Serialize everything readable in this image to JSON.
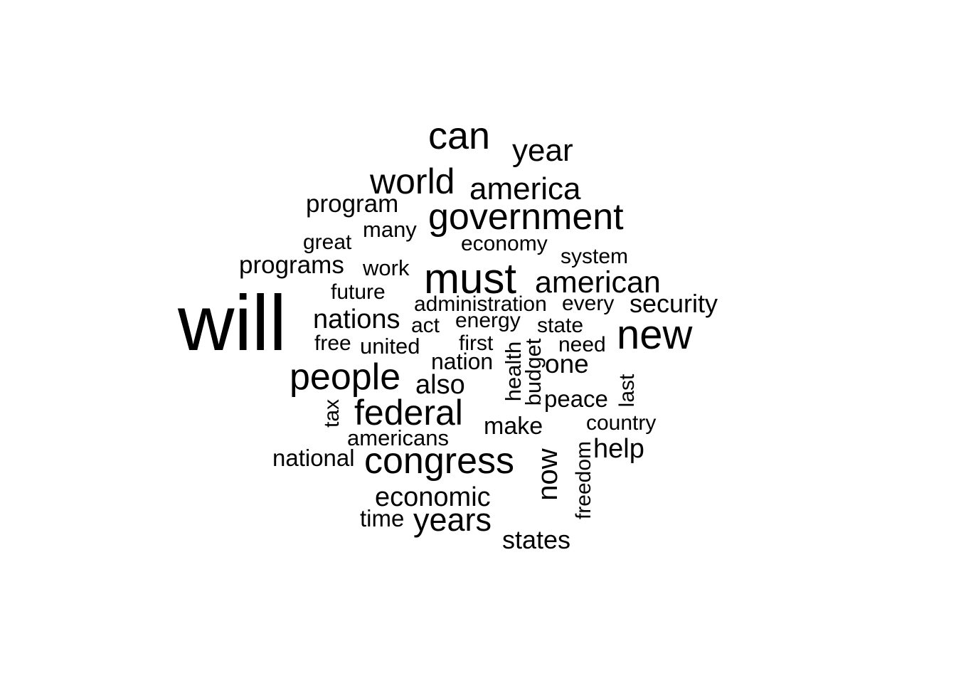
{
  "word_cloud": {
    "text_color": "#000000",
    "background_color": "#ffffff",
    "words": [
      {
        "text": "will",
        "rank": 1
      },
      {
        "text": "must",
        "rank": 2
      },
      {
        "text": "new",
        "rank": 3
      },
      {
        "text": "can",
        "rank": 4
      },
      {
        "text": "congress",
        "rank": 5
      },
      {
        "text": "people",
        "rank": 6
      },
      {
        "text": "government",
        "rank": 7
      },
      {
        "text": "world",
        "rank": 8
      },
      {
        "text": "federal",
        "rank": 9
      },
      {
        "text": "year",
        "rank": 10
      },
      {
        "text": "america",
        "rank": 11
      },
      {
        "text": "american",
        "rank": 12
      },
      {
        "text": "years",
        "rank": 13
      },
      {
        "text": "now",
        "rank": 14
      },
      {
        "text": "nations",
        "rank": 15
      },
      {
        "text": "also",
        "rank": 16
      },
      {
        "text": "economic",
        "rank": 17
      },
      {
        "text": "security",
        "rank": 18
      },
      {
        "text": "one",
        "rank": 19
      },
      {
        "text": "help",
        "rank": 20
      },
      {
        "text": "program",
        "rank": 21
      },
      {
        "text": "programs",
        "rank": 22
      },
      {
        "text": "states",
        "rank": 23
      },
      {
        "text": "make",
        "rank": 24
      },
      {
        "text": "peace",
        "rank": 25
      },
      {
        "text": "nation",
        "rank": 26
      },
      {
        "text": "administration",
        "rank": 27
      },
      {
        "text": "energy",
        "rank": 28
      },
      {
        "text": "economy",
        "rank": 29
      },
      {
        "text": "system",
        "rank": 30
      },
      {
        "text": "united",
        "rank": 31
      },
      {
        "text": "work",
        "rank": 32
      },
      {
        "text": "many",
        "rank": 33
      },
      {
        "text": "americans",
        "rank": 34
      },
      {
        "text": "national",
        "rank": 35
      },
      {
        "text": "time",
        "rank": 36
      },
      {
        "text": "every",
        "rank": 37
      },
      {
        "text": "future",
        "rank": 38
      },
      {
        "text": "great",
        "rank": 39
      },
      {
        "text": "health",
        "rank": 40
      },
      {
        "text": "budget",
        "rank": 41
      },
      {
        "text": "country",
        "rank": 42
      },
      {
        "text": "freedom",
        "rank": 43
      },
      {
        "text": "need",
        "rank": 44
      },
      {
        "text": "first",
        "rank": 45
      },
      {
        "text": "state",
        "rank": 46
      },
      {
        "text": "free",
        "rank": 47
      },
      {
        "text": "act",
        "rank": 48
      },
      {
        "text": "last",
        "rank": 49
      },
      {
        "text": "tax",
        "rank": 50
      }
    ]
  }
}
